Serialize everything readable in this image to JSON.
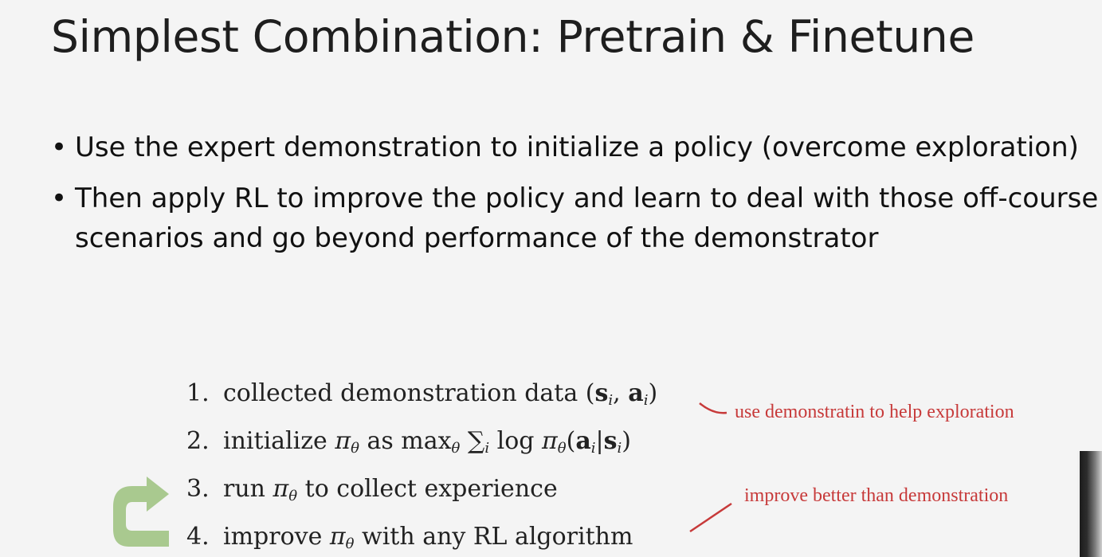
{
  "slide": {
    "title": "Simplest Combination: Pretrain & Finetune",
    "bullets": [
      "Use the expert demonstration to initialize a policy (overcome exploration)",
      "Then apply RL to improve the policy and learn to deal with those off-course scenarios and go beyond performance of the demonstrator"
    ],
    "bullet_glyph": "•"
  },
  "algorithm": {
    "steps": [
      {
        "num": "1.",
        "text": "collected demonstration data"
      },
      {
        "num": "2.",
        "text": "initialize"
      },
      {
        "num": "3.",
        "text": "run"
      },
      {
        "num": "4.",
        "text": "improve"
      }
    ],
    "step1_math": "(s, a)",
    "step2_as": "as max",
    "step2_math": "log π(a|s)",
    "step3_rest": "to collect experience",
    "step4_rest": "with any RL algorithm",
    "pi": "π",
    "theta": "θ",
    "sigma": "∑",
    "i": "i"
  },
  "annotations": {
    "exploration_note": "use demonstratin to help exploration",
    "improve_note": "improve better than demonstration",
    "color": "#c73a3a"
  },
  "icons": {
    "loop_arrow": "curved-return-arrow-icon",
    "loop_arrow_color": "#a9c98f"
  }
}
